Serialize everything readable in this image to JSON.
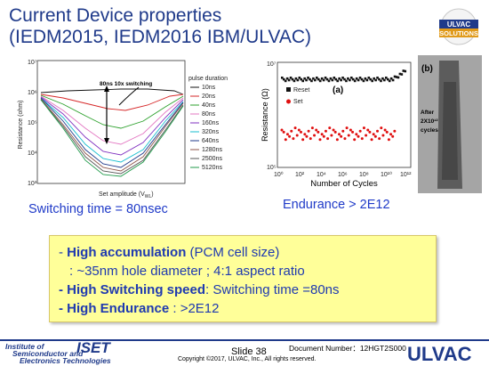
{
  "title_line1": "Current Device properties",
  "title_line2": "(IEDM2015, IEDM2016 IBM/ULVAC)",
  "logo_top": {
    "line1": "ULVAC",
    "line2": "SOLUTIONS"
  },
  "chart1": {
    "ylabel": "Resistance (ohm)",
    "xlabel": "Set amplitude (V",
    "xlabel_sub": "WL",
    "xlabel_end": ")",
    "yticks": [
      "10⁷",
      "10⁶",
      "10⁵",
      "10⁴",
      "10³"
    ],
    "annotation": "80ns 10x switching",
    "legend_title": "pulse duration",
    "legend": [
      {
        "label": "10ns",
        "color": "#111111"
      },
      {
        "label": "20ns",
        "color": "#d62728"
      },
      {
        "label": "40ns",
        "color": "#2ca02c"
      },
      {
        "label": "80ns",
        "color": "#e377c2"
      },
      {
        "label": "160ns",
        "color": "#7f2fbf"
      },
      {
        "label": "320ns",
        "color": "#17becf"
      },
      {
        "label": "640ns",
        "color": "#1f3a8a"
      },
      {
        "label": "1280ns",
        "color": "#8c564b"
      },
      {
        "label": "2500ns",
        "color": "#555555"
      },
      {
        "label": "5120ns",
        "color": "#1f9a4a"
      }
    ]
  },
  "chart2": {
    "ylabel": "Resistance (Ω)",
    "xlabel": "Number of Cycles",
    "label_a": "(a)",
    "label_b": "(b)",
    "legend": [
      {
        "label": "Reset",
        "color": "#111111"
      },
      {
        "label": "Set",
        "color": "#e01010"
      }
    ],
    "yticks": [
      "10⁷",
      "10⁵"
    ],
    "xticks": [
      "10⁰",
      "10²",
      "10⁴",
      "10⁶",
      "10⁸",
      "10¹⁰",
      "10¹²"
    ],
    "after_text": [
      "After",
      "2X10¹²",
      "cycles"
    ]
  },
  "caption_left": "Switching time = 80nsec",
  "caption_right": "Endurance > 2E12",
  "box": {
    "l1_pre": "- ",
    "l1_bold": "High accumulation",
    "l1_rest": " (PCM cell size)",
    "l2": ": ~35nm hole diameter ;  4:1 aspect ratio",
    "l3_bold": "-  High Switching speed",
    "l3_rest": ": Switching time =80ns",
    "l4_bold": "-  High Endurance",
    "l4_rest": "  :   >2E12"
  },
  "footer": {
    "iset_l1": "Institute of",
    "iset_l2": "Semiconductor and",
    "iset_l3": "Electronics Technologies",
    "iset_big": "ISET",
    "slide": "Slide 38",
    "docnum": "Document Number：12HGT2S000",
    "copyright": "Copyright ©2017, ULVAC, Inc., All rights reserved.",
    "ulvac": "ULVAC"
  }
}
